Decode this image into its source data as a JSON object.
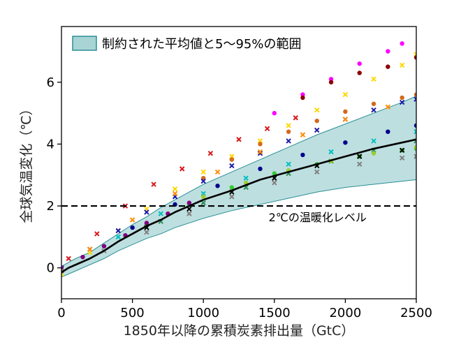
{
  "chart_data": {
    "type": "scatter",
    "xlabel": "1850年以降の累積炭素排出量（GtC）",
    "ylabel": "全球気温変化（℃）",
    "xlim": [
      0,
      2500
    ],
    "ylim": [
      -1.0,
      7.8
    ],
    "x_ticks": [
      0,
      500,
      1000,
      1500,
      2000,
      2500
    ],
    "y_ticks": [
      0,
      2,
      4,
      6
    ],
    "x_tick_labels": [
      "0",
      "500",
      "1000",
      "1500",
      "2000",
      "2500"
    ],
    "y_tick_labels": [
      "0",
      "2",
      "4",
      "6"
    ],
    "legend": {
      "placement": "top-left",
      "entries": [
        {
          "label": "制約された平均値と5～95%の範囲",
          "color": "#a8d4d6",
          "edge": "#2a8f95"
        }
      ]
    },
    "reference_line": {
      "y": 2,
      "style": "dashed",
      "label": "2℃の温暖化レベル"
    },
    "constrained_mean": {
      "x": [
        0,
        50,
        100,
        200,
        300,
        400,
        500,
        600,
        700,
        800,
        900,
        1000,
        1200,
        1400,
        1600,
        1800,
        2000,
        2200,
        2400,
        2500
      ],
      "y": [
        -0.15,
        0.0,
        0.1,
        0.3,
        0.55,
        0.85,
        1.1,
        1.35,
        1.55,
        1.8,
        2.0,
        2.2,
        2.5,
        2.85,
        3.1,
        3.35,
        3.6,
        3.85,
        4.05,
        4.15
      ]
    },
    "constrained_range": {
      "x": [
        0,
        100,
        200,
        300,
        400,
        500,
        600,
        700,
        800,
        900,
        1000,
        1200,
        1400,
        1600,
        1800,
        2000,
        2200,
        2400,
        2500
      ],
      "lower": [
        -0.3,
        -0.1,
        0.1,
        0.3,
        0.55,
        0.75,
        0.95,
        1.1,
        1.3,
        1.45,
        1.6,
        1.85,
        2.05,
        2.25,
        2.45,
        2.6,
        2.7,
        2.8,
        2.85
      ],
      "upper": [
        0.05,
        0.3,
        0.5,
        0.8,
        1.1,
        1.4,
        1.65,
        1.95,
        2.2,
        2.45,
        2.7,
        3.1,
        3.5,
        3.9,
        4.3,
        4.65,
        5.0,
        5.35,
        5.55
      ]
    },
    "series": [
      {
        "color": "#d7191c",
        "marker": "x",
        "x": [
          50,
          250,
          450,
          650,
          850,
          1050,
          1250,
          1450,
          1650
        ],
        "y": [
          0.3,
          1.1,
          2.0,
          2.7,
          3.2,
          3.7,
          4.15,
          4.5,
          4.85
        ]
      },
      {
        "color": "#ff00ff",
        "marker": "o",
        "x": [
          1500,
          1700,
          1900,
          2100,
          2300,
          2400
        ],
        "y": [
          5.0,
          5.6,
          6.1,
          6.6,
          7.0,
          7.25
        ]
      },
      {
        "color": "#ffd700",
        "marker": "x",
        "x": [
          0,
          200,
          400,
          600,
          800,
          1000,
          1200,
          1400,
          1600,
          1800,
          2000,
          2200,
          2400,
          2500
        ],
        "y": [
          -0.2,
          0.5,
          1.2,
          1.9,
          2.55,
          3.1,
          3.6,
          4.1,
          4.6,
          5.1,
          5.6,
          6.1,
          6.55,
          6.9
        ]
      },
      {
        "color": "#8b0000",
        "marker": "o",
        "x": [
          1700,
          1900,
          2100,
          2300,
          2500
        ],
        "y": [
          5.5,
          6.0,
          6.3,
          6.5,
          6.8
        ]
      },
      {
        "color": "#d2691e",
        "marker": "o",
        "x": [
          1000,
          1200,
          1400,
          1600,
          1800,
          2000,
          2200,
          2400,
          2500
        ],
        "y": [
          2.9,
          3.5,
          4.0,
          4.4,
          4.75,
          5.05,
          5.3,
          5.5,
          5.6
        ]
      },
      {
        "color": "#1a1aa6",
        "marker": "x",
        "x": [
          0,
          200,
          400,
          600,
          800,
          1000,
          1200,
          1400,
          1600,
          1800,
          2000,
          2200,
          2400,
          2500
        ],
        "y": [
          0.0,
          0.6,
          1.2,
          1.8,
          2.3,
          2.8,
          3.3,
          3.7,
          4.1,
          4.45,
          4.8,
          5.1,
          5.35,
          5.45
        ]
      },
      {
        "color": "#32cd32",
        "marker": "o",
        "x": [
          300,
          600,
          900,
          1200,
          1500,
          1800,
          2100,
          2400,
          2500
        ],
        "y": [
          0.7,
          1.4,
          2.05,
          2.6,
          3.05,
          3.35,
          3.6,
          3.8,
          3.85
        ]
      },
      {
        "color": "#00bfbf",
        "marker": "x",
        "x": [
          400,
          700,
          1000,
          1300,
          1600,
          1900,
          2200,
          2500
        ],
        "y": [
          1.0,
          1.75,
          2.4,
          2.9,
          3.35,
          3.75,
          4.1,
          4.4
        ]
      },
      {
        "color": "#800080",
        "marker": "o",
        "x": [
          0,
          150,
          300,
          450,
          600,
          750,
          900
        ],
        "y": [
          0.0,
          0.35,
          0.7,
          1.05,
          1.45,
          1.75,
          2.1
        ]
      },
      {
        "color": "#ff8c00",
        "marker": "x",
        "x": [
          200,
          500,
          800,
          1100,
          1400,
          1700,
          2000,
          2300
        ],
        "y": [
          0.6,
          1.55,
          2.4,
          3.1,
          3.75,
          4.3,
          4.8,
          5.2
        ]
      },
      {
        "color": "#808080",
        "marker": "x",
        "x": [
          0,
          300,
          600,
          900,
          1200,
          1500,
          1800,
          2100,
          2400,
          2500
        ],
        "y": [
          -0.1,
          0.55,
          1.15,
          1.75,
          2.3,
          2.75,
          3.1,
          3.35,
          3.55,
          3.6
        ]
      },
      {
        "color": "#00008b",
        "marker": "o",
        "x": [
          500,
          800,
          1100,
          1400,
          1700,
          2000,
          2300,
          2500
        ],
        "y": [
          1.3,
          2.05,
          2.65,
          3.2,
          3.65,
          4.05,
          4.4,
          4.6
        ]
      },
      {
        "color": "#2e8b57",
        "marker": "x",
        "x": [
          700,
          1000,
          1300,
          1600,
          1900,
          2200,
          2500
        ],
        "y": [
          1.5,
          2.1,
          2.6,
          3.05,
          3.45,
          3.8,
          4.1
        ]
      },
      {
        "color": "#000000",
        "marker": "x",
        "x": [
          600,
          900,
          1200,
          1500,
          1800,
          2100,
          2400
        ],
        "y": [
          1.3,
          1.9,
          2.45,
          2.9,
          3.3,
          3.6,
          3.8
        ]
      },
      {
        "color": "#9acd32",
        "marker": "o",
        "x": [
          1000,
          1300,
          1600,
          1900,
          2200,
          2500
        ],
        "y": [
          2.3,
          2.75,
          3.15,
          3.45,
          3.7,
          3.9
        ]
      }
    ]
  }
}
